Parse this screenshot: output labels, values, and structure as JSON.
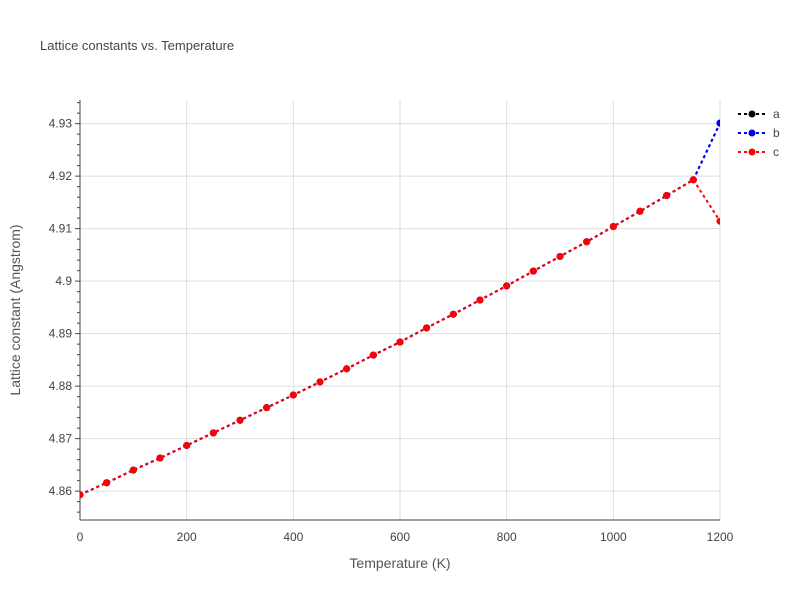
{
  "chart_data": {
    "type": "line",
    "title": "Lattice constants vs. Temperature",
    "xlabel": "Temperature (K)",
    "ylabel": "Lattice constant (Angstrom)",
    "xlim": [
      0,
      1200
    ],
    "ylim": [
      4.8545,
      4.9345
    ],
    "x_ticks": [
      0,
      200,
      400,
      600,
      800,
      1000,
      1200
    ],
    "y_ticks": [
      4.86,
      4.87,
      4.88,
      4.89,
      4.9,
      4.91,
      4.92,
      4.93
    ],
    "y_tick_labels": [
      "4.86",
      "4.87",
      "4.88",
      "4.89",
      "4.9",
      "4.91",
      "4.92",
      "4.93"
    ],
    "grid": true,
    "legend_position": "top-right",
    "x": [
      0,
      50,
      100,
      150,
      200,
      250,
      300,
      350,
      400,
      450,
      500,
      550,
      600,
      650,
      700,
      750,
      800,
      850,
      900,
      950,
      1000,
      1050,
      1100,
      1150,
      1200
    ],
    "series": [
      {
        "name": "a",
        "color": "#000000",
        "values": [
          4.8593,
          4.8616,
          4.864,
          4.8663,
          4.8687,
          4.8711,
          4.8735,
          4.8759,
          4.8783,
          4.8808,
          4.8833,
          4.8859,
          4.8884,
          4.8911,
          4.8937,
          4.8964,
          4.8991,
          4.9019,
          4.9047,
          4.9075,
          4.9104,
          4.9133,
          4.9163,
          4.9193,
          4.9301
        ]
      },
      {
        "name": "b",
        "color": "#0000ff",
        "values": [
          4.8593,
          4.8616,
          4.864,
          4.8663,
          4.8687,
          4.8711,
          4.8735,
          4.8759,
          4.8783,
          4.8808,
          4.8833,
          4.8859,
          4.8884,
          4.8911,
          4.8937,
          4.8964,
          4.8991,
          4.9019,
          4.9047,
          4.9075,
          4.9104,
          4.9133,
          4.9163,
          4.9193,
          4.9301
        ]
      },
      {
        "name": "c",
        "color": "#ff0000",
        "values": [
          4.8593,
          4.8616,
          4.864,
          4.8663,
          4.8687,
          4.8711,
          4.8735,
          4.8759,
          4.8783,
          4.8808,
          4.8833,
          4.8859,
          4.8884,
          4.8911,
          4.8937,
          4.8964,
          4.8991,
          4.9019,
          4.9047,
          4.9075,
          4.9104,
          4.9133,
          4.9163,
          4.9193,
          4.9114
        ]
      }
    ]
  }
}
